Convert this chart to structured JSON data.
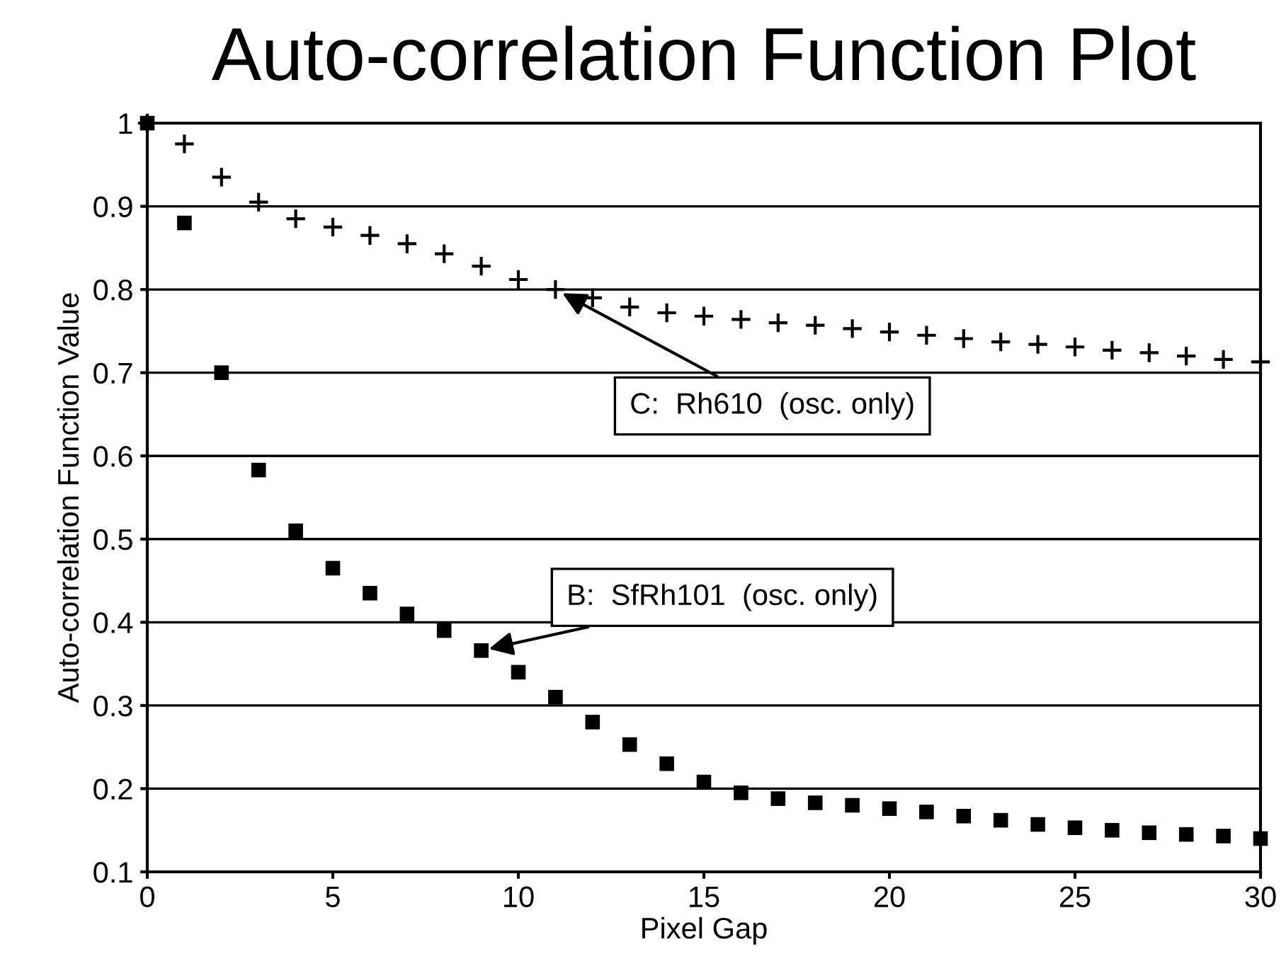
{
  "chart_data": {
    "type": "scatter",
    "title": "Auto-correlation Function Plot",
    "xlabel": "Pixel Gap",
    "ylabel": "Auto-correlation Function Value",
    "x": [
      0,
      1,
      2,
      3,
      4,
      5,
      6,
      7,
      8,
      9,
      10,
      11,
      12,
      13,
      14,
      15,
      16,
      17,
      18,
      19,
      20,
      21,
      22,
      23,
      24,
      25,
      26,
      27,
      28,
      29,
      30
    ],
    "series": [
      {
        "color": "#000000",
        "marker": "square",
        "values": [
          1,
          0.88,
          0.7,
          0.583,
          0.51,
          0.465,
          0.435,
          0.41,
          0.39,
          0.366,
          0.34,
          0.31,
          0.28,
          0.253,
          0.23,
          0.208,
          0.195,
          0.188,
          0.183,
          0.18,
          0.176,
          0.172,
          0.167,
          0.162,
          0.157,
          0.153,
          0.15,
          0.147,
          0.145,
          0.143,
          0.14
        ]
      },
      {
        "color": "#000000",
        "marker": "cross",
        "values": [
          1,
          0.975,
          0.935,
          0.905,
          0.885,
          0.875,
          0.865,
          0.855,
          0.843,
          0.828,
          0.812,
          0.8,
          0.79,
          0.779,
          0.772,
          0.768,
          0.764,
          0.76,
          0.757,
          0.753,
          0.749,
          0.745,
          0.741,
          0.737,
          0.734,
          0.731,
          0.727,
          0.724,
          0.72,
          0.716,
          0.713
        ]
      }
    ],
    "annotations": [
      {
        "text": "C:  Rh610  (osc. only)",
        "x": 11,
        "y": 0.8
      },
      {
        "text": "B:  SfRh101  (osc. only)",
        "x": 9,
        "y": 0.366
      }
    ],
    "xlim": [
      0,
      30
    ],
    "ylim": [
      0.1,
      1
    ],
    "xticks": [
      0,
      5,
      10,
      15,
      20,
      25,
      30
    ],
    "yticks": [
      0.1,
      0.2,
      0.3,
      0.4,
      0.5,
      0.6,
      0.7,
      0.8,
      0.9,
      1
    ],
    "grid": "y",
    "legend": false
  }
}
